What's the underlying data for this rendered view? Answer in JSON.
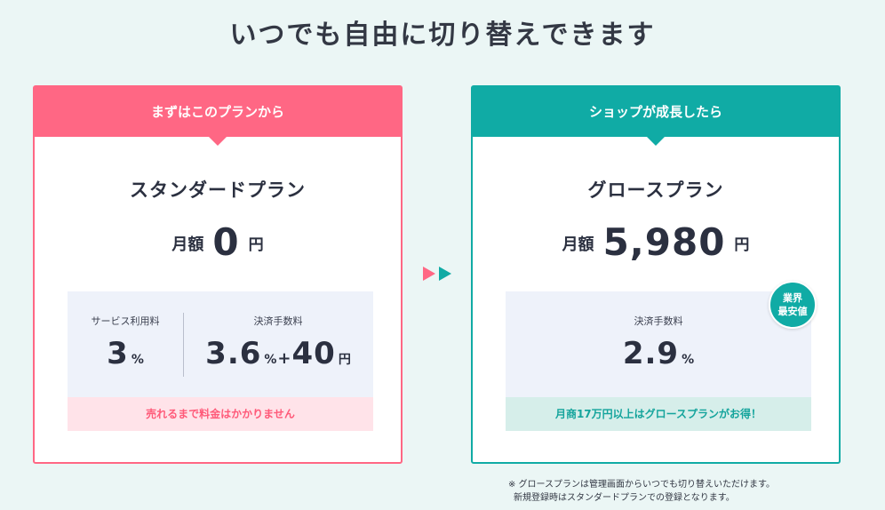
{
  "title": "いつでも自由に切り替えできます",
  "standard": {
    "header": "まずはこのプランから",
    "name": "スタンダードプラン",
    "price_label": "月額",
    "price_value": "0",
    "price_unit": "円",
    "fees": {
      "service_label": "サービス利用料",
      "service_value": "3",
      "service_unit": "%",
      "payment_label": "決済手数料",
      "payment_value": "3.6",
      "payment_unit": "%",
      "payment_plus": "+",
      "payment_fixed": "40",
      "payment_fixed_unit": "円"
    },
    "note": "売れるまで料金はかかりません",
    "accent_color": "#ff6784"
  },
  "growth": {
    "header": "ショップが成長したら",
    "name": "グロースプラン",
    "price_label": "月額",
    "price_value": "5,980",
    "price_unit": "円",
    "badge_line1": "業界",
    "badge_line2": "最安値",
    "fees": {
      "payment_label": "決済手数料",
      "payment_value": "2.9",
      "payment_unit": "%"
    },
    "note": "月商17万円以上はグロースプランがお得！",
    "accent_color": "#10aba5"
  },
  "arrow_icons": [
    "triangle-right-pink-icon",
    "triangle-right-teal-icon"
  ],
  "footnote": {
    "line1": "※ グロースプランは管理画面からいつでも切り替えいただけます。",
    "line2": "新規登録時はスタンダードプランでの登録となります。"
  }
}
